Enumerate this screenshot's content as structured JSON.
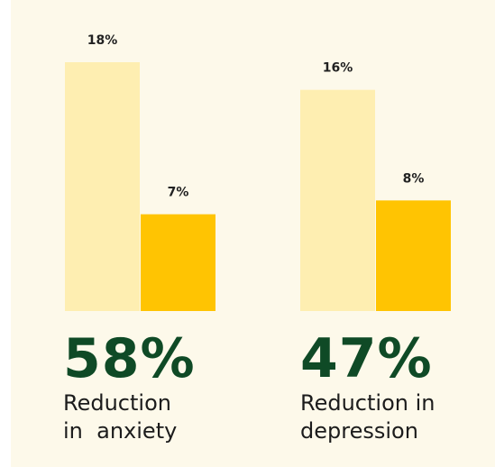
{
  "chart_data": {
    "type": "bar",
    "groups": [
      {
        "stat": "58%",
        "caption_line1": "Reduction",
        "caption_line2": "in  anxiety",
        "bars": [
          {
            "value": 18,
            "label": "18%",
            "color": "#feeeb1"
          },
          {
            "value": 7,
            "label": "7%",
            "color": "#ffc402"
          }
        ]
      },
      {
        "stat": "47%",
        "caption_line1": "Reduction in",
        "caption_line2": "depression",
        "bars": [
          {
            "value": 16,
            "label": "16%",
            "color": "#feeeb1"
          },
          {
            "value": 8,
            "label": "8%",
            "color": "#ffc402"
          }
        ]
      }
    ],
    "ylim": [
      0,
      18
    ],
    "grid": false,
    "legend": "none"
  },
  "colors": {
    "background": "#fdf9ea",
    "light_bar": "#feeeb1",
    "dark_bar": "#ffc402",
    "stat_green": "#0f4a26"
  }
}
